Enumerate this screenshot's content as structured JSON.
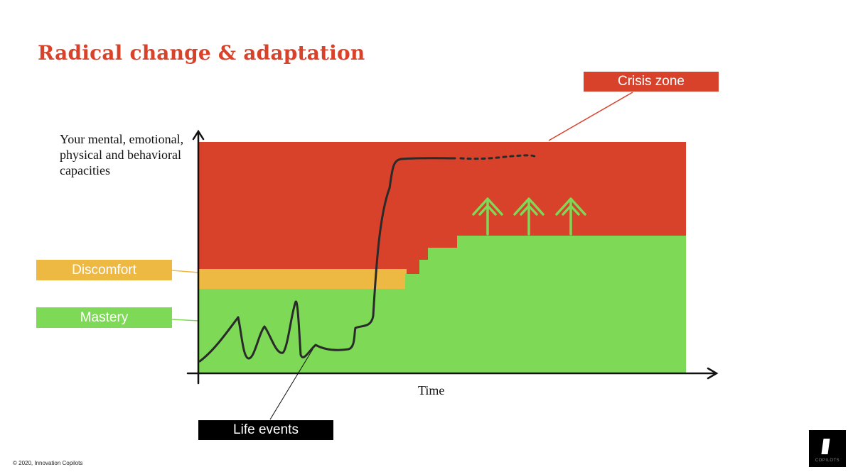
{
  "title": "Radical change & adaptation",
  "labels": {
    "crisis": "Crisis zone",
    "discomfort": "Discomfort",
    "mastery": "Mastery",
    "life_events": "Life events"
  },
  "axes": {
    "y_label": "Your mental, emotional, physical and behavioral capacities",
    "x_label": "Time"
  },
  "footer": {
    "copyright": "© 2020, Innovation Copilots",
    "logo_text": "COPILOTS"
  },
  "colors": {
    "crisis": "#d8412a",
    "discomfort": "#eeb942",
    "mastery": "#7ed957",
    "curve": "#2a2a2a"
  },
  "arrows": {
    "count": 3
  }
}
